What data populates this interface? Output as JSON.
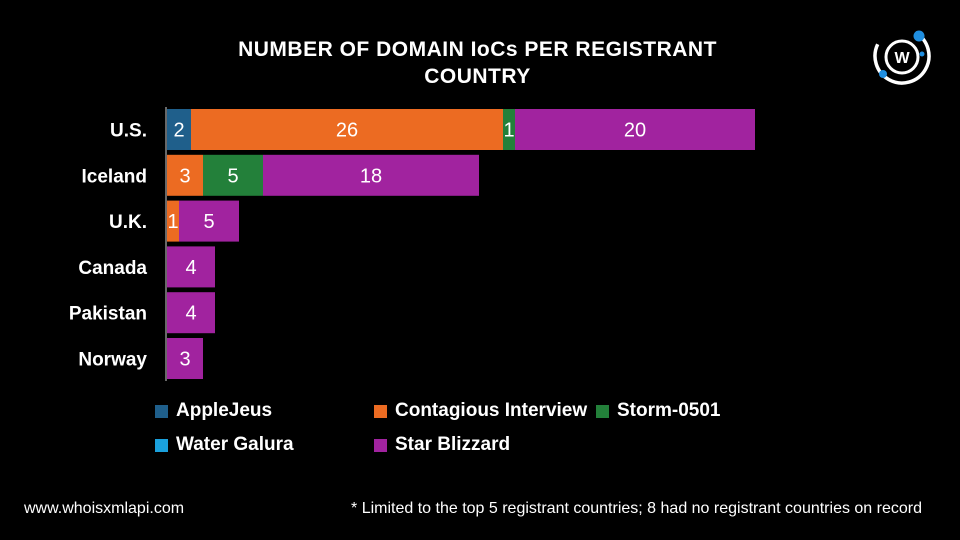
{
  "title_lines": [
    "NUMBER OF DOMAIN IoCs PER REGISTRANT",
    "COUNTRY"
  ],
  "colors": {
    "AppleJeus": "#1f5f8b",
    "Contagious Interview": "#ec6b22",
    "Storm-0501": "#23803a",
    "Water Galura": "#1aa0dc",
    "Star Blizzard": "#a1239f"
  },
  "chart_data": {
    "type": "bar",
    "orientation": "horizontal",
    "stacked": true,
    "title": "NUMBER OF DOMAIN IoCs PER REGISTRANT COUNTRY",
    "categories": [
      "U.S.",
      "Iceland",
      "U.K.",
      "Canada",
      "Pakistan",
      "Norway"
    ],
    "series": [
      {
        "name": "AppleJeus",
        "values": [
          2,
          0,
          0,
          0,
          0,
          0
        ]
      },
      {
        "name": "Contagious Interview",
        "values": [
          26,
          3,
          1,
          0,
          0,
          0
        ]
      },
      {
        "name": "Storm-0501",
        "values": [
          1,
          5,
          0,
          0,
          0,
          0
        ]
      },
      {
        "name": "Water Galura",
        "values": [
          0,
          0,
          0,
          0,
          0,
          0
        ]
      },
      {
        "name": "Star Blizzard",
        "values": [
          20,
          18,
          5,
          4,
          4,
          3
        ]
      }
    ],
    "xlabel": "",
    "ylabel": "",
    "xlim": [
      0,
      49
    ],
    "grid": false,
    "legend_position": "bottom"
  },
  "legend": [
    {
      "name": "AppleJeus"
    },
    {
      "name": "Contagious Interview"
    },
    {
      "name": "Storm-0501"
    },
    {
      "name": "Water Galura"
    },
    {
      "name": "Star Blizzard"
    }
  ],
  "footer": {
    "website": "www.whoisxmlapi.com",
    "note": "* Limited to the top 5 registrant countries; 8 had no registrant countries on record"
  },
  "logo": {
    "letter": "W",
    "icon": "whoisxmlapi-logo-icon"
  }
}
